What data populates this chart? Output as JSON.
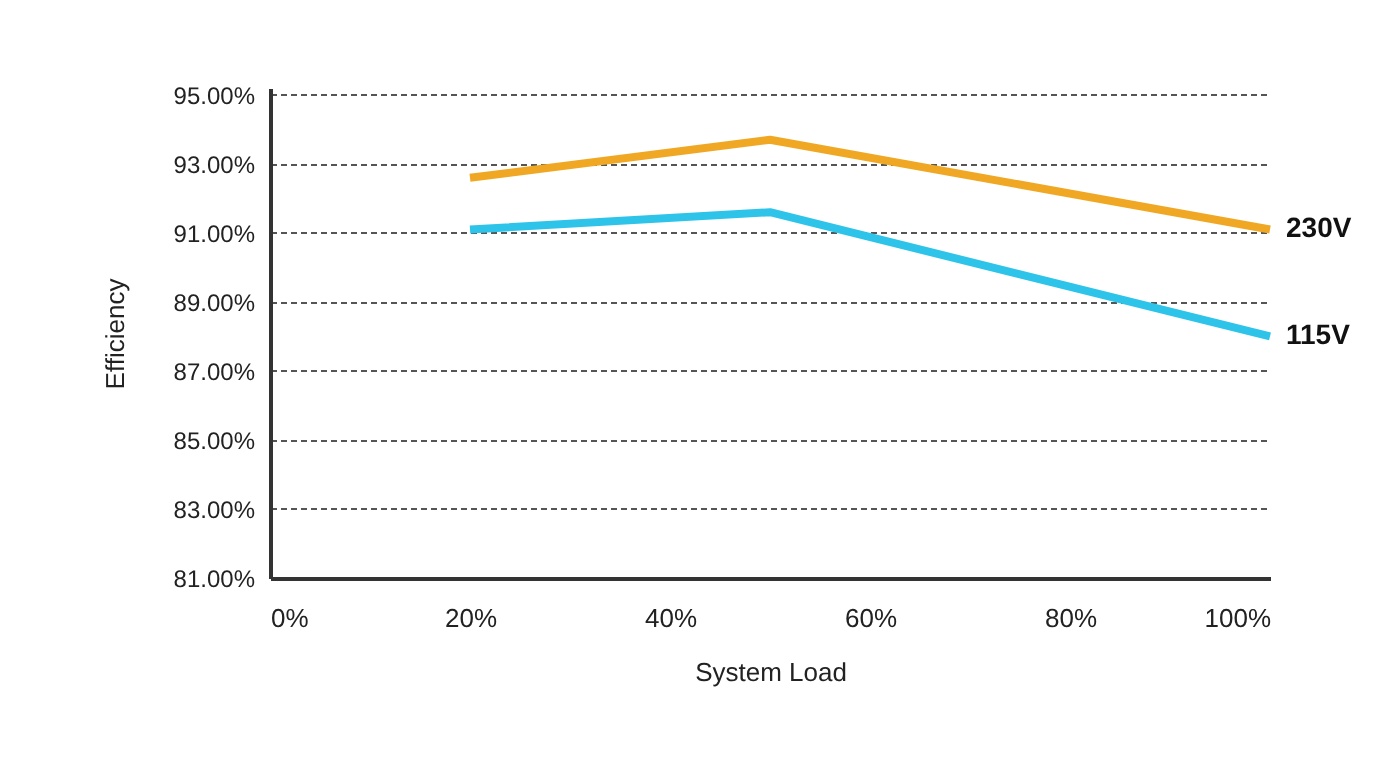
{
  "chart_data": {
    "type": "line",
    "xlabel": "System Load",
    "ylabel": "Efficiency",
    "x": [
      20,
      50,
      100
    ],
    "series": [
      {
        "name": "230V",
        "color": "#f0a824",
        "values": [
          92.6,
          93.7,
          91.1
        ]
      },
      {
        "name": "115V",
        "color": "#2ec4ea",
        "values": [
          91.1,
          91.6,
          88.0
        ]
      }
    ],
    "xlim": [
      0,
      100
    ],
    "xticks": [
      {
        "value": 0,
        "label": "0%"
      },
      {
        "value": 20,
        "label": "20%"
      },
      {
        "value": 40,
        "label": "40%"
      },
      {
        "value": 60,
        "label": "60%"
      },
      {
        "value": 80,
        "label": "80%"
      },
      {
        "value": 100,
        "label": "100%"
      }
    ],
    "ylim": [
      81,
      95.2
    ],
    "yticks": [
      {
        "value": 81,
        "label": "81.00%"
      },
      {
        "value": 83,
        "label": "83.00%"
      },
      {
        "value": 85,
        "label": "85.00%"
      },
      {
        "value": 87,
        "label": "87.00%"
      },
      {
        "value": 89,
        "label": "89.00%"
      },
      {
        "value": 91,
        "label": "91.00%"
      },
      {
        "value": 93,
        "label": "93.00%"
      },
      {
        "value": 95,
        "label": "95.00%"
      }
    ],
    "grid": "y",
    "legend": false,
    "marker": "none",
    "line_style": "solid"
  }
}
